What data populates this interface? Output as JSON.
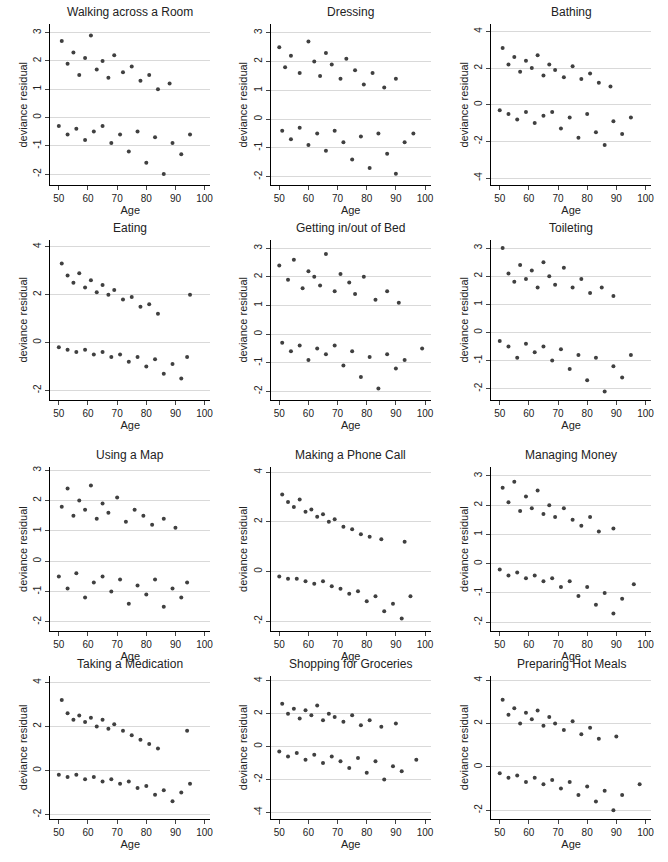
{
  "chart_data": [
    {
      "type": "scatter",
      "title": "Walking across a Room",
      "x_label": "Age",
      "y_label": "deviance residual",
      "color": "#404040",
      "grid": true,
      "xlim": [
        47,
        102
      ],
      "xticks": [
        50,
        60,
        70,
        80,
        90,
        100
      ],
      "ylim": [
        -2.4,
        3.3
      ],
      "yticks": [
        -2,
        -1,
        0,
        1,
        2,
        3
      ],
      "x": [
        51,
        53,
        55,
        57,
        59,
        61,
        63,
        65,
        67,
        69,
        72,
        75,
        78,
        81,
        84,
        88,
        50,
        53,
        56,
        59,
        62,
        65,
        68,
        71,
        74,
        77,
        80,
        83,
        86,
        89,
        92,
        95
      ],
      "y": [
        2.7,
        1.9,
        2.3,
        1.5,
        2.1,
        2.9,
        1.7,
        2.0,
        1.4,
        2.2,
        1.6,
        1.8,
        1.3,
        1.5,
        1.0,
        1.2,
        -0.3,
        -0.6,
        -0.4,
        -0.8,
        -0.5,
        -0.3,
        -0.9,
        -0.6,
        -1.2,
        -0.5,
        -1.6,
        -0.7,
        -2.0,
        -0.9,
        -1.3,
        -0.6
      ]
    },
    {
      "type": "scatter",
      "title": "Dressing",
      "x_label": "Age",
      "y_label": "deviance residual",
      "color": "#404040",
      "grid": true,
      "xlim": [
        47,
        102
      ],
      "xticks": [
        50,
        60,
        70,
        80,
        90,
        100
      ],
      "ylim": [
        -2.3,
        3.3
      ],
      "yticks": [
        -2,
        -1,
        0,
        1,
        2,
        3
      ],
      "x": [
        50,
        52,
        54,
        57,
        60,
        62,
        64,
        66,
        68,
        71,
        73,
        76,
        79,
        82,
        86,
        90,
        51,
        54,
        57,
        60,
        63,
        66,
        69,
        72,
        75,
        78,
        81,
        84,
        87,
        90,
        93,
        96
      ],
      "y": [
        2.5,
        1.8,
        2.2,
        1.6,
        2.7,
        2.0,
        1.5,
        2.3,
        1.9,
        1.4,
        2.1,
        1.7,
        1.2,
        1.6,
        1.1,
        1.4,
        -0.4,
        -0.7,
        -0.3,
        -0.9,
        -0.5,
        -1.1,
        -0.4,
        -0.8,
        -1.4,
        -0.6,
        -1.7,
        -0.5,
        -1.2,
        -1.9,
        -0.8,
        -0.5
      ]
    },
    {
      "type": "scatter",
      "title": "Bathing",
      "x_label": "Age",
      "y_label": "deviance residual",
      "color": "#404040",
      "grid": true,
      "xlim": [
        47,
        102
      ],
      "xticks": [
        50,
        60,
        70,
        80,
        90,
        100
      ],
      "ylim": [
        -4.4,
        4.4
      ],
      "yticks": [
        -4,
        -2,
        0,
        2,
        4
      ],
      "x": [
        51,
        53,
        55,
        57,
        59,
        61,
        63,
        65,
        67,
        69,
        72,
        75,
        78,
        81,
        84,
        88,
        50,
        53,
        56,
        59,
        62,
        65,
        68,
        71,
        74,
        77,
        80,
        83,
        86,
        89,
        92,
        95
      ],
      "y": [
        3.1,
        2.2,
        2.6,
        1.8,
        2.4,
        2.0,
        2.7,
        1.6,
        2.2,
        1.9,
        1.5,
        2.1,
        1.4,
        1.7,
        1.2,
        1.0,
        -0.3,
        -0.5,
        -0.8,
        -0.4,
        -1.0,
        -0.6,
        -0.4,
        -1.3,
        -0.7,
        -1.8,
        -0.5,
        -1.5,
        -2.2,
        -0.9,
        -1.6,
        -0.7
      ]
    },
    {
      "type": "scatter",
      "title": "Eating",
      "x_label": "Age",
      "y_label": "deviance residual",
      "color": "#404040",
      "grid": true,
      "xlim": [
        47,
        102
      ],
      "xticks": [
        50,
        60,
        70,
        80,
        90,
        100
      ],
      "ylim": [
        -2.4,
        4.3
      ],
      "yticks": [
        -2,
        0,
        2,
        4
      ],
      "x": [
        51,
        53,
        55,
        57,
        59,
        61,
        63,
        65,
        67,
        69,
        72,
        75,
        78,
        81,
        84,
        95,
        50,
        53,
        56,
        59,
        62,
        65,
        68,
        71,
        74,
        77,
        80,
        83,
        86,
        89,
        92,
        94
      ],
      "y": [
        3.3,
        2.8,
        2.5,
        2.9,
        2.3,
        2.6,
        2.1,
        2.4,
        2.0,
        2.2,
        1.8,
        1.9,
        1.5,
        1.6,
        1.2,
        2.0,
        -0.2,
        -0.3,
        -0.4,
        -0.3,
        -0.5,
        -0.4,
        -0.6,
        -0.5,
        -0.8,
        -0.6,
        -1.0,
        -0.7,
        -1.3,
        -0.9,
        -1.5,
        -0.6
      ]
    },
    {
      "type": "scatter",
      "title": "Getting in/out of Bed",
      "x_label": "Age",
      "y_label": "deviance residual",
      "color": "#404040",
      "grid": true,
      "xlim": [
        47,
        102
      ],
      "xticks": [
        50,
        60,
        70,
        80,
        90,
        100
      ],
      "ylim": [
        -2.3,
        3.3
      ],
      "yticks": [
        -2,
        -1,
        0,
        1,
        2,
        3
      ],
      "x": [
        50,
        53,
        55,
        58,
        60,
        62,
        64,
        66,
        69,
        71,
        74,
        76,
        79,
        83,
        87,
        91,
        51,
        54,
        57,
        60,
        63,
        66,
        69,
        72,
        75,
        78,
        81,
        84,
        87,
        90,
        93,
        99
      ],
      "y": [
        2.4,
        1.9,
        2.6,
        1.6,
        2.2,
        2.0,
        1.7,
        2.8,
        1.5,
        2.1,
        1.8,
        1.4,
        2.0,
        1.2,
        1.5,
        1.1,
        -0.3,
        -0.6,
        -0.4,
        -0.9,
        -0.5,
        -0.7,
        -0.4,
        -1.1,
        -0.6,
        -1.5,
        -0.8,
        -1.9,
        -0.7,
        -1.2,
        -0.9,
        -0.5
      ]
    },
    {
      "type": "scatter",
      "title": "Toileting",
      "x_label": "Age",
      "y_label": "deviance residual",
      "color": "#404040",
      "grid": true,
      "xlim": [
        47,
        102
      ],
      "xticks": [
        50,
        60,
        70,
        80,
        90,
        100
      ],
      "ylim": [
        -2.4,
        3.3
      ],
      "yticks": [
        -2,
        -1,
        0,
        1,
        2,
        3
      ],
      "x": [
        51,
        53,
        55,
        57,
        59,
        61,
        63,
        65,
        67,
        69,
        72,
        75,
        78,
        81,
        85,
        89,
        50,
        53,
        56,
        59,
        62,
        65,
        68,
        71,
        74,
        77,
        80,
        83,
        86,
        89,
        92,
        95
      ],
      "y": [
        3.0,
        2.1,
        1.8,
        2.4,
        1.9,
        2.2,
        1.6,
        2.5,
        2.0,
        1.7,
        2.3,
        1.6,
        1.9,
        1.4,
        1.6,
        1.3,
        -0.3,
        -0.5,
        -0.9,
        -0.4,
        -0.7,
        -0.5,
        -1.0,
        -0.6,
        -1.3,
        -0.8,
        -1.7,
        -0.9,
        -2.1,
        -1.2,
        -1.6,
        -0.8
      ]
    },
    {
      "type": "scatter",
      "title": "Using a Map",
      "x_label": "Age",
      "y_label": "deviance residual",
      "color": "#404040",
      "grid": true,
      "xlim": [
        47,
        102
      ],
      "xticks": [
        50,
        60,
        70,
        80,
        90,
        100
      ],
      "ylim": [
        -2.3,
        3.1
      ],
      "yticks": [
        -2,
        -1,
        0,
        1,
        2,
        3
      ],
      "x": [
        51,
        53,
        55,
        57,
        59,
        61,
        63,
        65,
        67,
        70,
        73,
        76,
        79,
        82,
        86,
        90,
        50,
        53,
        56,
        59,
        62,
        65,
        68,
        71,
        74,
        77,
        80,
        83,
        86,
        89,
        92,
        94
      ],
      "y": [
        1.8,
        2.4,
        1.5,
        2.0,
        1.7,
        2.5,
        1.4,
        1.9,
        1.6,
        2.1,
        1.3,
        1.7,
        1.5,
        1.2,
        1.4,
        1.1,
        -0.5,
        -0.9,
        -0.4,
        -1.2,
        -0.7,
        -0.5,
        -1.0,
        -0.6,
        -1.4,
        -0.8,
        -1.1,
        -0.6,
        -1.5,
        -0.9,
        -1.2,
        -0.7
      ]
    },
    {
      "type": "scatter",
      "title": "Making a Phone Call",
      "x_label": "Age",
      "y_label": "deviance residual",
      "color": "#404040",
      "grid": true,
      "xlim": [
        47,
        102
      ],
      "xticks": [
        50,
        60,
        70,
        80,
        90,
        100
      ],
      "ylim": [
        -2.4,
        4.2
      ],
      "yticks": [
        -2,
        0,
        2,
        4
      ],
      "x": [
        51,
        53,
        55,
        57,
        59,
        61,
        63,
        65,
        67,
        69,
        72,
        75,
        78,
        81,
        85,
        93,
        50,
        53,
        56,
        59,
        62,
        65,
        68,
        71,
        74,
        77,
        80,
        83,
        86,
        89,
        92,
        95
      ],
      "y": [
        3.1,
        2.8,
        2.6,
        2.9,
        2.4,
        2.5,
        2.2,
        2.3,
        2.0,
        2.1,
        1.8,
        1.7,
        1.5,
        1.4,
        1.3,
        1.2,
        -0.2,
        -0.3,
        -0.3,
        -0.4,
        -0.5,
        -0.4,
        -0.6,
        -0.7,
        -0.9,
        -0.8,
        -1.2,
        -1.0,
        -1.6,
        -1.3,
        -1.9,
        -1.0
      ]
    },
    {
      "type": "scatter",
      "title": "Managing Money",
      "x_label": "Age",
      "y_label": "deviance residual",
      "color": "#404040",
      "grid": true,
      "xlim": [
        47,
        102
      ],
      "xticks": [
        50,
        60,
        70,
        80,
        90,
        100
      ],
      "ylim": [
        -2.3,
        3.3
      ],
      "yticks": [
        -2,
        -1,
        0,
        1,
        2,
        3
      ],
      "x": [
        51,
        53,
        55,
        57,
        59,
        61,
        63,
        65,
        67,
        69,
        72,
        75,
        78,
        81,
        84,
        89,
        50,
        53,
        56,
        59,
        62,
        65,
        68,
        71,
        74,
        77,
        80,
        83,
        86,
        89,
        92,
        96
      ],
      "y": [
        2.6,
        2.1,
        2.8,
        1.8,
        2.3,
        1.9,
        2.5,
        1.7,
        2.0,
        1.6,
        1.9,
        1.5,
        1.3,
        1.6,
        1.1,
        1.2,
        -0.2,
        -0.4,
        -0.3,
        -0.5,
        -0.4,
        -0.6,
        -0.5,
        -0.8,
        -0.6,
        -1.1,
        -0.8,
        -1.4,
        -1.0,
        -1.7,
        -1.2,
        -0.7
      ]
    },
    {
      "type": "scatter",
      "title": "Taking a Medication",
      "x_label": "Age",
      "y_label": "deviance residual",
      "color": "#404040",
      "grid": true,
      "xlim": [
        47,
        102
      ],
      "xticks": [
        50,
        60,
        70,
        80,
        90,
        100
      ],
      "ylim": [
        -2.2,
        4.3
      ],
      "yticks": [
        -2,
        0,
        2,
        4
      ],
      "x": [
        51,
        53,
        55,
        57,
        59,
        61,
        63,
        65,
        67,
        69,
        72,
        75,
        78,
        81,
        84,
        94,
        50,
        53,
        56,
        59,
        62,
        65,
        68,
        71,
        74,
        77,
        80,
        83,
        86,
        89,
        92,
        95
      ],
      "y": [
        3.2,
        2.6,
        2.3,
        2.5,
        2.2,
        2.4,
        2.0,
        2.3,
        1.9,
        2.1,
        1.8,
        1.6,
        1.4,
        1.2,
        1.0,
        1.8,
        -0.2,
        -0.3,
        -0.2,
        -0.4,
        -0.3,
        -0.5,
        -0.4,
        -0.6,
        -0.5,
        -0.8,
        -0.7,
        -1.1,
        -0.9,
        -1.4,
        -1.0,
        -0.6
      ]
    },
    {
      "type": "scatter",
      "title": "Shopping for Groceries",
      "x_label": "Age",
      "y_label": "deviance residual",
      "color": "#404040",
      "grid": true,
      "xlim": [
        47,
        102
      ],
      "xticks": [
        50,
        60,
        70,
        80,
        90,
        100
      ],
      "ylim": [
        -4.4,
        4.3
      ],
      "yticks": [
        -4,
        -2,
        0,
        2,
        4
      ],
      "x": [
        51,
        53,
        55,
        57,
        59,
        61,
        63,
        65,
        67,
        69,
        72,
        75,
        78,
        81,
        85,
        90,
        50,
        53,
        56,
        59,
        62,
        65,
        68,
        71,
        74,
        77,
        80,
        83,
        86,
        89,
        92,
        97
      ],
      "y": [
        2.6,
        2.0,
        2.3,
        1.7,
        2.2,
        1.9,
        2.5,
        1.6,
        2.0,
        1.8,
        1.5,
        1.9,
        1.3,
        1.6,
        1.2,
        1.4,
        -0.3,
        -0.6,
        -0.4,
        -0.8,
        -0.5,
        -1.0,
        -0.6,
        -0.9,
        -1.3,
        -0.7,
        -1.6,
        -0.9,
        -2.0,
        -1.2,
        -1.5,
        -0.8
      ]
    },
    {
      "type": "scatter",
      "title": "Preparing Hot Meals",
      "x_label": "Age",
      "y_label": "deviance residual",
      "color": "#404040",
      "grid": true,
      "xlim": [
        47,
        102
      ],
      "xticks": [
        50,
        60,
        70,
        80,
        90,
        100
      ],
      "ylim": [
        -2.4,
        4.2
      ],
      "yticks": [
        -2,
        0,
        2,
        4
      ],
      "x": [
        51,
        53,
        55,
        57,
        59,
        61,
        63,
        65,
        67,
        69,
        72,
        75,
        78,
        81,
        84,
        90,
        50,
        53,
        56,
        59,
        62,
        65,
        68,
        71,
        74,
        77,
        80,
        83,
        86,
        89,
        92,
        98
      ],
      "y": [
        3.1,
        2.4,
        2.7,
        2.0,
        2.5,
        2.2,
        2.6,
        1.9,
        2.3,
        2.0,
        1.7,
        2.1,
        1.5,
        1.8,
        1.3,
        1.4,
        -0.3,
        -0.5,
        -0.4,
        -0.7,
        -0.5,
        -0.8,
        -0.6,
        -1.0,
        -0.7,
        -1.3,
        -0.9,
        -1.6,
        -1.1,
        -2.0,
        -1.3,
        -0.8
      ]
    }
  ]
}
